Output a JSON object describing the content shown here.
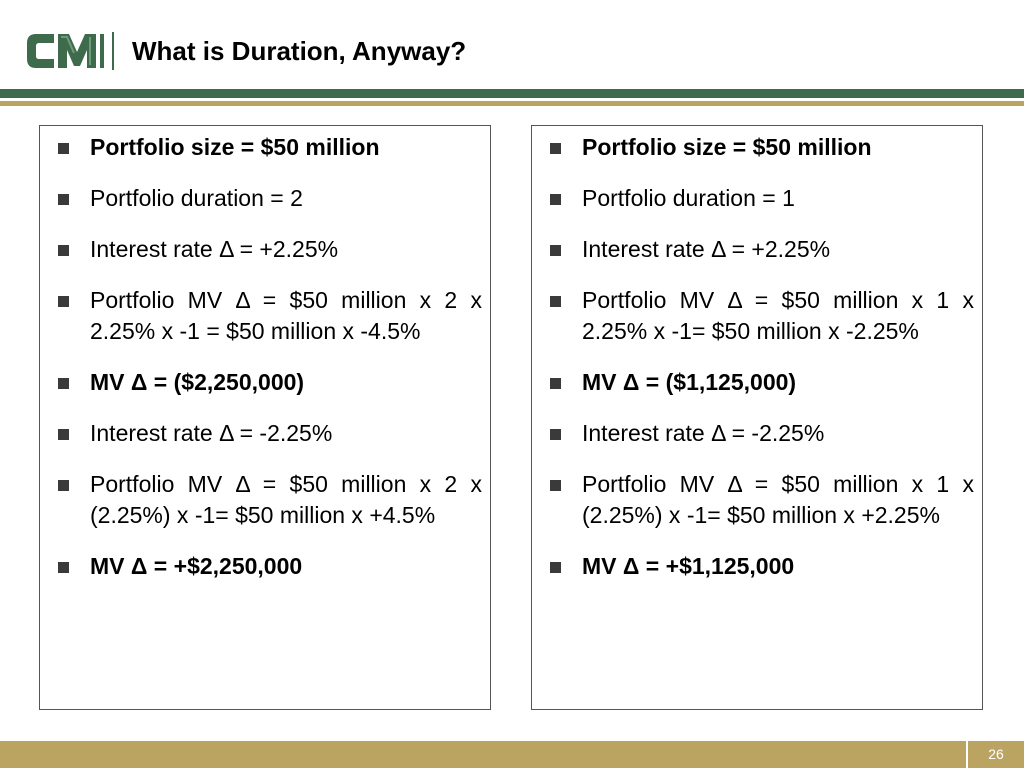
{
  "header": {
    "logo_text": "CM",
    "title": "What is Duration, Anyway?"
  },
  "left_column": {
    "bullets": [
      {
        "text": "Portfolio size = $50 million",
        "bold": true
      },
      {
        "text": "Portfolio duration = 2",
        "bold": false
      },
      {
        "text": "Interest rate Δ = +2.25%",
        "bold": false
      },
      {
        "text": "Portfolio MV Δ  = $50 million x 2 x 2.25% x -1 = $50 million x -4.5%",
        "bold": false
      },
      {
        "text": "MV Δ = ($2,250,000)",
        "bold": true
      },
      {
        "text": "Interest rate Δ = -2.25%",
        "bold": false
      },
      {
        "text": "Portfolio MV Δ  = $50 million x 2 x (2.25%) x -1= $50 million x +4.5%",
        "bold": false
      },
      {
        "text": "MV Δ = +$2,250,000",
        "bold": true
      }
    ]
  },
  "right_column": {
    "bullets": [
      {
        "text": "Portfolio size = $50 million",
        "bold": true
      },
      {
        "text": "Portfolio duration = 1",
        "bold": false
      },
      {
        "text": "Interest rate Δ = +2.25%",
        "bold": false
      },
      {
        "text": "Portfolio MV Δ  = $50 million x 1 x 2.25% x -1= $50 million x -2.25%",
        "bold": false
      },
      {
        "text": "MV Δ = ($1,125,000)",
        "bold": true
      },
      {
        "text": "Interest rate Δ = -2.25%",
        "bold": false
      },
      {
        "text": "Portfolio MV Δ  = $50 million x 1 x (2.25%) x -1= $50 million x +2.25%",
        "bold": false
      },
      {
        "text": "MV Δ = +$1,125,000",
        "bold": true
      }
    ]
  },
  "footer": {
    "page_number": "26"
  },
  "colors": {
    "brand_green": "#3d6b4c",
    "brand_gold": "#bba462",
    "logo_green_light": "#6f9a7b",
    "bullet_marker": "#3a3a3a"
  }
}
